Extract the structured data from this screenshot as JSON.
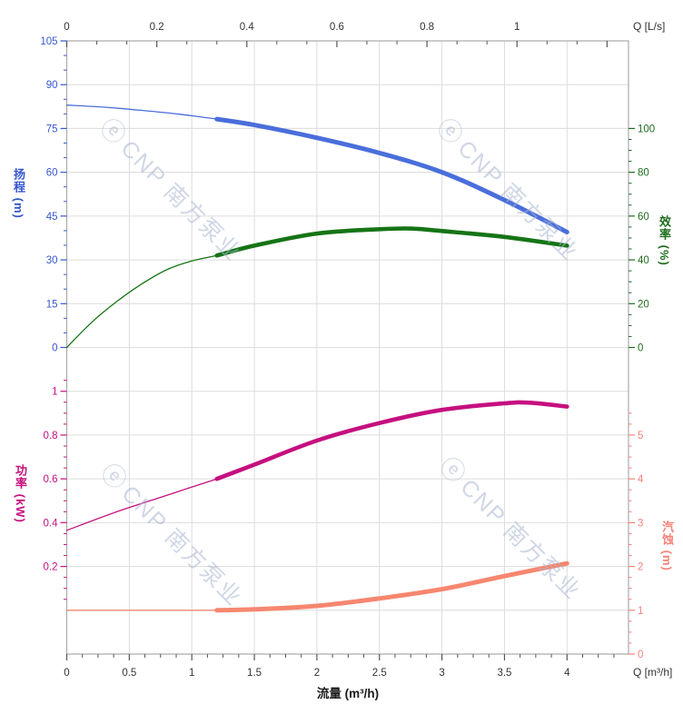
{
  "watermark": {
    "logo_glyph": "ⓔ",
    "text": "CNP 南方泵业"
  },
  "chart_data": {
    "type": "line",
    "title": "",
    "legend": "none",
    "grid": "on",
    "x_axis_bottom": {
      "label": "流量 (m³/h)",
      "unit": "Q [m³/h]",
      "ticks": [
        0,
        0.5,
        1,
        1.5,
        2,
        2.5,
        3,
        3.5,
        4
      ],
      "minor_step": 0.125,
      "range": [
        0,
        4.49
      ],
      "color": "#333333"
    },
    "x_axis_top": {
      "unit": "Q [L/s]",
      "ticks": [
        0,
        0.2,
        0.4,
        0.6,
        0.8,
        1
      ],
      "unlabeled_majors": [
        1.2
      ],
      "minor_step_lps": 0.06667,
      "m3h_per_lps": 3.6,
      "color": "#333333"
    },
    "axes": {
      "head": {
        "title": "扬程 (m)",
        "side": "left",
        "color": "#3758d0",
        "majors": [
          105,
          90,
          75,
          60,
          45,
          30,
          15,
          0
        ],
        "minor_step": 5,
        "range": [
          0,
          105
        ]
      },
      "eff": {
        "title": "效率 (%)",
        "side": "right",
        "color": "#1e6b1e",
        "majors": [
          100,
          80,
          60,
          40,
          20,
          0
        ],
        "minor_step": 5,
        "range": [
          0,
          100
        ]
      },
      "power": {
        "title": "功率 (kW)",
        "side": "left",
        "color": "#c5107f",
        "majors": [
          1,
          0.8,
          0.6,
          0.4,
          0.2
        ],
        "minor_step": 0.05,
        "range": [
          0,
          1.07
        ]
      },
      "npsh": {
        "title": "汽蚀 (m)",
        "side": "right",
        "color": "#f4837a",
        "majors": [
          5,
          4,
          3,
          2,
          1,
          0
        ],
        "minor_step": 0.25,
        "range": [
          0,
          5.6
        ]
      }
    },
    "series": [
      {
        "key": "head-curve",
        "axis": "head",
        "color": "#4a6edb",
        "thick_width": 5,
        "thin": [
          [
            0,
            83
          ],
          [
            0.3,
            82.3
          ],
          [
            0.6,
            81.2
          ],
          [
            0.9,
            79.9
          ],
          [
            1.2,
            78.2
          ]
        ],
        "thick": [
          [
            1.2,
            78.2
          ],
          [
            1.5,
            76.2
          ],
          [
            2,
            71.8
          ],
          [
            2.5,
            66.6
          ],
          [
            3,
            60
          ],
          [
            3.5,
            50.5
          ],
          [
            4,
            39.5
          ]
        ]
      },
      {
        "key": "efficiency-curve",
        "axis": "eff",
        "color": "#167416",
        "thick_width": 4.6,
        "thin": [
          [
            0,
            0
          ],
          [
            0.2,
            11.5
          ],
          [
            0.4,
            21
          ],
          [
            0.6,
            29
          ],
          [
            0.8,
            35.5
          ],
          [
            1,
            39.5
          ],
          [
            1.2,
            42
          ]
        ],
        "thick": [
          [
            1.2,
            42
          ],
          [
            1.5,
            46.5
          ],
          [
            2,
            52
          ],
          [
            2.5,
            54
          ],
          [
            2.75,
            54.3
          ],
          [
            3,
            53.2
          ],
          [
            3.5,
            50.5
          ],
          [
            4,
            46.5
          ]
        ]
      },
      {
        "key": "power-curve",
        "axis": "power",
        "color": "#c5107f",
        "thick_width": 4.6,
        "thin": [
          [
            0,
            0.365
          ],
          [
            0.4,
            0.45
          ],
          [
            0.8,
            0.525
          ],
          [
            1.2,
            0.6
          ]
        ],
        "thick": [
          [
            1.2,
            0.6
          ],
          [
            1.5,
            0.665
          ],
          [
            2,
            0.775
          ],
          [
            2.5,
            0.855
          ],
          [
            3,
            0.915
          ],
          [
            3.5,
            0.945
          ],
          [
            3.7,
            0.948
          ],
          [
            4,
            0.93
          ]
        ]
      },
      {
        "key": "npsh-curve",
        "axis": "npsh",
        "color": "#f6876f",
        "thick_width": 5,
        "thin": [
          [
            0,
            1
          ],
          [
            0.6,
            1
          ],
          [
            1.2,
            1
          ]
        ],
        "thick": [
          [
            1.2,
            1
          ],
          [
            1.5,
            1.02
          ],
          [
            2,
            1.1
          ],
          [
            2.5,
            1.27
          ],
          [
            3,
            1.48
          ],
          [
            3.5,
            1.78
          ],
          [
            4,
            2.07
          ]
        ]
      }
    ],
    "style": {
      "grid_color": "#dcdcdc",
      "border_color": "#ababab",
      "xtick_color": "#555555",
      "xlabel_color": "#333333",
      "thin_width": 1.3
    }
  }
}
